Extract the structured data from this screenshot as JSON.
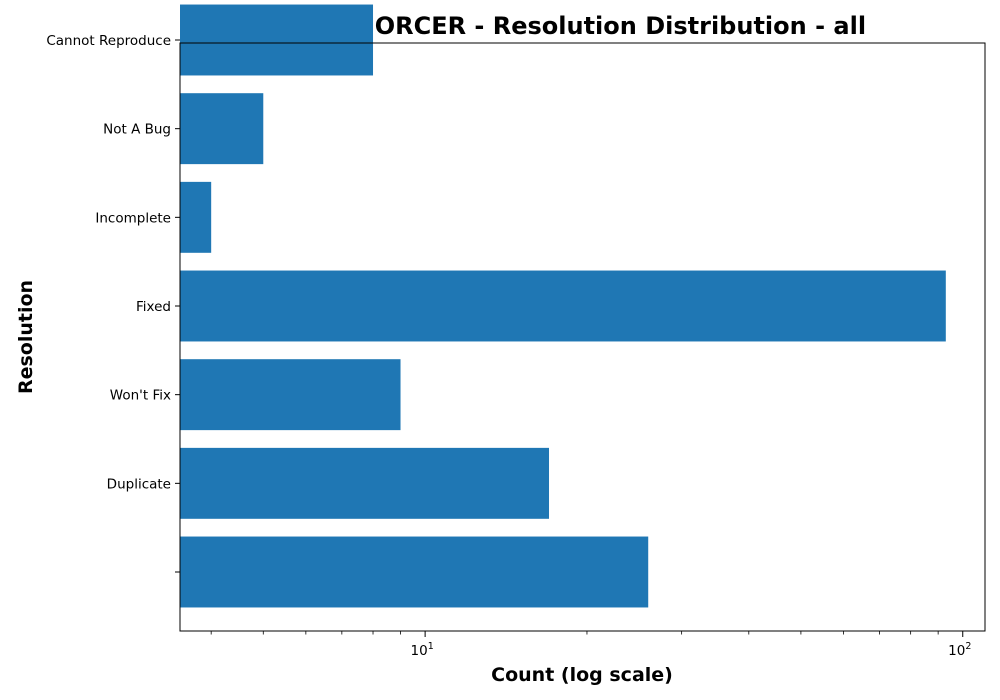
{
  "chart_data": {
    "type": "bar",
    "orientation": "horizontal",
    "title": "MENFORCER - Resolution Distribution - all",
    "xlabel": "Count (log scale)",
    "ylabel": "Resolution",
    "x_scale": "log",
    "xlim": [
      3.5,
      110
    ],
    "x_ticks": [
      {
        "value": 10,
        "base": "10",
        "exp": "1"
      },
      {
        "value": 100,
        "base": "10",
        "exp": "2"
      }
    ],
    "categories": [
      "",
      "Duplicate",
      "Won't Fix",
      "Fixed",
      "Incomplete",
      "Not A Bug",
      "Cannot Reproduce"
    ],
    "values": [
      26,
      17,
      9,
      93,
      4,
      5,
      8
    ],
    "color": "#1f77b4",
    "grid": false
  }
}
